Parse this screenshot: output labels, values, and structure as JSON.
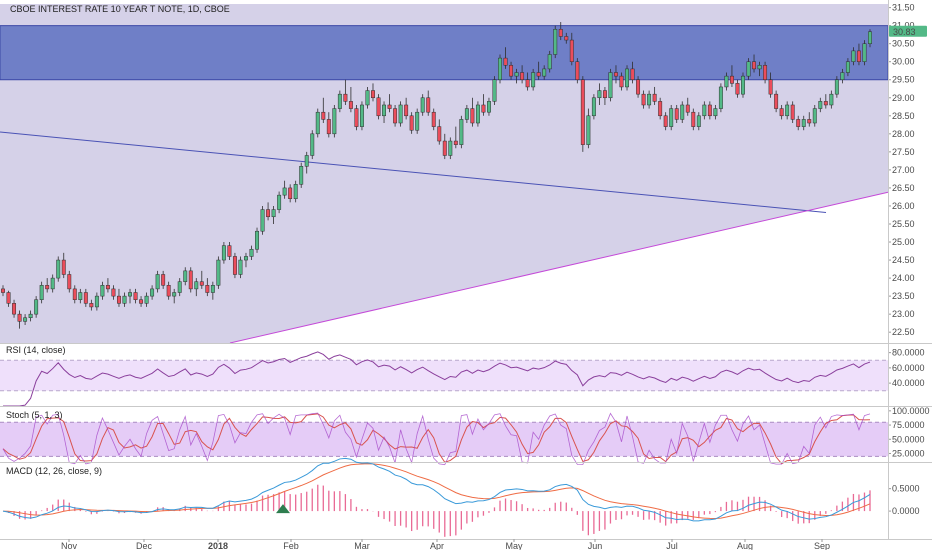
{
  "chart_data": {
    "type": "candlestick",
    "title": "CBOE INTEREST RATE 10 YEAR T NOTE, 1D, CBOE",
    "last_price": "30.83",
    "last_price_value": 30.83,
    "x_labels": [
      "Nov",
      "Dec",
      "2018",
      "Feb",
      "Mar",
      "Apr",
      "May",
      "Jun",
      "Jul",
      "Aug",
      "Sep"
    ],
    "price_axis": {
      "ylim": [
        22.2,
        31.6
      ],
      "ticks": [
        "31.50",
        "31.00",
        "30.50",
        "30.00",
        "29.50",
        "29.00",
        "28.50",
        "28.00",
        "27.50",
        "27.00",
        "26.50",
        "26.00",
        "25.50",
        "25.00",
        "24.50",
        "24.00",
        "23.50",
        "23.00",
        "22.50"
      ]
    },
    "colors": {
      "up": "#53b987",
      "down": "#eb4d5c",
      "zone_fill": "#6f7fc7",
      "wedge_fill": "#d5d1e8",
      "trendline": "#4a52b5",
      "support_line": "#c44ad8",
      "rsi_line": "#8a3f9c",
      "rsi_band": "#efe0fb",
      "stoch_k": "#a64ac9",
      "stoch_d": "#d9534f",
      "stoch_band": "#e5ccf7",
      "macd_line": "#3a9ad9",
      "signal_line": "#ef6c45",
      "macd_hist": "#e96a95"
    },
    "resistance_zone": {
      "top": 31.0,
      "bottom": 29.5
    },
    "trendline": {
      "start_value": 28.05,
      "end_value": 25.82
    },
    "support_line": {
      "start_value": 22.2,
      "end_value": 26.38
    },
    "rsi": {
      "label": "RSI (14, close)",
      "ylim": [
        10,
        90
      ],
      "ticks": [
        "80.0000",
        "60.0000",
        "40.0000"
      ],
      "upper": 70,
      "lower": 30
    },
    "stoch": {
      "label": "Stoch (5, 1, 3)",
      "ylim": [
        10,
        105
      ],
      "ticks": [
        "100.0000",
        "75.0000",
        "50.0000",
        "25.0000"
      ],
      "upper": 80,
      "lower": 20
    },
    "macd": {
      "label": "MACD (12, 26, close, 9)",
      "ylim": [
        -0.6,
        1.05
      ],
      "ticks": [
        "0.5000",
        "0.0000"
      ]
    },
    "candles": [
      [
        23.7,
        23.8,
        23.5,
        23.6
      ],
      [
        23.6,
        23.65,
        23.2,
        23.3
      ],
      [
        23.3,
        23.4,
        22.9,
        23.0
      ],
      [
        23.0,
        23.1,
        22.6,
        22.8
      ],
      [
        22.8,
        23.0,
        22.7,
        22.9
      ],
      [
        22.9,
        23.1,
        22.8,
        23.0
      ],
      [
        23.0,
        23.5,
        22.9,
        23.4
      ],
      [
        23.4,
        23.9,
        23.3,
        23.8
      ],
      [
        23.8,
        24.0,
        23.6,
        23.7
      ],
      [
        23.7,
        24.1,
        23.6,
        24.0
      ],
      [
        24.0,
        24.6,
        23.9,
        24.5
      ],
      [
        24.5,
        24.7,
        24.0,
        24.1
      ],
      [
        24.1,
        24.2,
        23.6,
        23.7
      ],
      [
        23.7,
        23.8,
        23.3,
        23.4
      ],
      [
        23.4,
        23.7,
        23.3,
        23.6
      ],
      [
        23.6,
        23.7,
        23.2,
        23.3
      ],
      [
        23.3,
        23.4,
        23.1,
        23.2
      ],
      [
        23.2,
        23.6,
        23.1,
        23.5
      ],
      [
        23.5,
        23.9,
        23.4,
        23.8
      ],
      [
        23.8,
        24.0,
        23.6,
        23.7
      ],
      [
        23.7,
        23.8,
        23.4,
        23.5
      ],
      [
        23.5,
        23.7,
        23.2,
        23.3
      ],
      [
        23.3,
        23.6,
        23.2,
        23.5
      ],
      [
        23.5,
        23.7,
        23.3,
        23.6
      ],
      [
        23.6,
        23.7,
        23.3,
        23.4
      ],
      [
        23.4,
        23.5,
        23.2,
        23.3
      ],
      [
        23.3,
        23.6,
        23.2,
        23.5
      ],
      [
        23.5,
        23.8,
        23.4,
        23.7
      ],
      [
        23.7,
        24.2,
        23.6,
        24.1
      ],
      [
        24.1,
        24.2,
        23.7,
        23.8
      ],
      [
        23.8,
        23.9,
        23.4,
        23.5
      ],
      [
        23.5,
        23.7,
        23.3,
        23.6
      ],
      [
        23.6,
        24.0,
        23.5,
        23.9
      ],
      [
        23.9,
        24.3,
        23.8,
        24.2
      ],
      [
        24.2,
        24.3,
        23.6,
        23.7
      ],
      [
        23.7,
        24.0,
        23.5,
        23.9
      ],
      [
        23.9,
        24.2,
        23.7,
        23.8
      ],
      [
        23.8,
        24.0,
        23.5,
        23.6
      ],
      [
        23.6,
        23.9,
        23.4,
        23.8
      ],
      [
        23.8,
        24.6,
        23.7,
        24.5
      ],
      [
        24.5,
        25.0,
        24.4,
        24.9
      ],
      [
        24.9,
        25.0,
        24.5,
        24.6
      ],
      [
        24.6,
        24.7,
        24.0,
        24.1
      ],
      [
        24.1,
        24.6,
        24.0,
        24.5
      ],
      [
        24.5,
        24.7,
        24.3,
        24.6
      ],
      [
        24.6,
        24.9,
        24.5,
        24.8
      ],
      [
        24.8,
        25.4,
        24.7,
        25.3
      ],
      [
        25.3,
        26.0,
        25.2,
        25.9
      ],
      [
        25.9,
        26.1,
        25.6,
        25.7
      ],
      [
        25.7,
        26.0,
        25.5,
        25.9
      ],
      [
        25.9,
        26.4,
        25.8,
        26.3
      ],
      [
        26.3,
        26.7,
        26.2,
        26.5
      ],
      [
        26.5,
        26.6,
        26.1,
        26.2
      ],
      [
        26.2,
        26.7,
        26.1,
        26.6
      ],
      [
        26.6,
        27.2,
        26.5,
        27.1
      ],
      [
        27.1,
        27.5,
        26.9,
        27.4
      ],
      [
        27.4,
        28.1,
        27.3,
        28.0
      ],
      [
        28.0,
        28.7,
        27.9,
        28.6
      ],
      [
        28.6,
        29.0,
        28.3,
        28.4
      ],
      [
        28.4,
        28.6,
        27.9,
        28.0
      ],
      [
        28.0,
        28.8,
        27.9,
        28.7
      ],
      [
        28.7,
        29.2,
        28.6,
        29.1
      ],
      [
        29.1,
        29.5,
        28.8,
        28.9
      ],
      [
        28.9,
        29.3,
        28.6,
        28.7
      ],
      [
        28.7,
        28.8,
        28.1,
        28.2
      ],
      [
        28.2,
        28.9,
        28.1,
        28.8
      ],
      [
        28.8,
        29.3,
        28.7,
        29.2
      ],
      [
        29.2,
        29.4,
        28.9,
        29.0
      ],
      [
        29.0,
        29.1,
        28.4,
        28.5
      ],
      [
        28.5,
        28.9,
        28.3,
        28.8
      ],
      [
        28.8,
        29.1,
        28.6,
        28.7
      ],
      [
        28.7,
        28.8,
        28.2,
        28.3
      ],
      [
        28.3,
        28.9,
        28.2,
        28.8
      ],
      [
        28.8,
        29.0,
        28.4,
        28.5
      ],
      [
        28.5,
        28.6,
        28.0,
        28.1
      ],
      [
        28.1,
        28.7,
        28.0,
        28.6
      ],
      [
        28.6,
        29.1,
        28.5,
        29.0
      ],
      [
        29.0,
        29.2,
        28.5,
        28.6
      ],
      [
        28.6,
        28.7,
        28.1,
        28.2
      ],
      [
        28.2,
        28.4,
        27.7,
        27.8
      ],
      [
        27.8,
        28.0,
        27.3,
        27.4
      ],
      [
        27.4,
        27.9,
        27.3,
        27.8
      ],
      [
        27.8,
        28.2,
        27.6,
        27.7
      ],
      [
        27.7,
        28.5,
        27.6,
        28.4
      ],
      [
        28.4,
        28.8,
        28.3,
        28.7
      ],
      [
        28.7,
        29.0,
        28.2,
        28.3
      ],
      [
        28.3,
        28.9,
        28.2,
        28.8
      ],
      [
        28.8,
        29.1,
        28.5,
        28.6
      ],
      [
        28.6,
        29.0,
        28.5,
        28.9
      ],
      [
        28.9,
        29.6,
        28.8,
        29.5
      ],
      [
        29.5,
        30.2,
        29.4,
        30.1
      ],
      [
        30.1,
        30.4,
        29.8,
        29.9
      ],
      [
        29.9,
        30.0,
        29.5,
        29.6
      ],
      [
        29.6,
        29.8,
        29.4,
        29.7
      ],
      [
        29.7,
        29.9,
        29.4,
        29.5
      ],
      [
        29.5,
        29.7,
        29.2,
        29.3
      ],
      [
        29.3,
        29.8,
        29.2,
        29.7
      ],
      [
        29.7,
        30.0,
        29.5,
        29.6
      ],
      [
        29.6,
        29.9,
        29.5,
        29.8
      ],
      [
        29.8,
        30.3,
        29.7,
        30.2
      ],
      [
        30.2,
        31.0,
        30.1,
        30.9
      ],
      [
        30.9,
        31.1,
        30.6,
        30.7
      ],
      [
        30.7,
        30.8,
        30.5,
        30.6
      ],
      [
        30.6,
        30.8,
        29.9,
        30.0
      ],
      [
        30.0,
        30.1,
        29.4,
        29.5
      ],
      [
        29.5,
        29.6,
        27.5,
        27.7
      ],
      [
        27.7,
        28.7,
        27.6,
        28.5
      ],
      [
        28.5,
        29.1,
        28.4,
        29.0
      ],
      [
        29.0,
        29.4,
        28.8,
        29.2
      ],
      [
        29.2,
        29.3,
        28.8,
        29.0
      ],
      [
        29.0,
        29.8,
        28.9,
        29.7
      ],
      [
        29.7,
        29.9,
        29.4,
        29.6
      ],
      [
        29.6,
        29.7,
        29.2,
        29.3
      ],
      [
        29.3,
        29.9,
        29.2,
        29.8
      ],
      [
        29.8,
        30.0,
        29.4,
        29.5
      ],
      [
        29.5,
        29.6,
        29.0,
        29.1
      ],
      [
        29.1,
        29.2,
        28.7,
        28.8
      ],
      [
        28.8,
        29.2,
        28.7,
        29.1
      ],
      [
        29.1,
        29.3,
        28.8,
        28.9
      ],
      [
        28.9,
        29.0,
        28.4,
        28.5
      ],
      [
        28.5,
        28.6,
        28.1,
        28.2
      ],
      [
        28.2,
        28.8,
        28.1,
        28.7
      ],
      [
        28.7,
        28.8,
        28.3,
        28.4
      ],
      [
        28.4,
        28.9,
        28.3,
        28.8
      ],
      [
        28.8,
        29.0,
        28.5,
        28.6
      ],
      [
        28.6,
        28.7,
        28.1,
        28.2
      ],
      [
        28.2,
        28.6,
        28.1,
        28.5
      ],
      [
        28.5,
        28.9,
        28.4,
        28.8
      ],
      [
        28.8,
        28.9,
        28.4,
        28.5
      ],
      [
        28.5,
        28.8,
        28.4,
        28.7
      ],
      [
        28.7,
        29.4,
        28.6,
        29.3
      ],
      [
        29.3,
        29.7,
        29.2,
        29.6
      ],
      [
        29.6,
        29.9,
        29.3,
        29.4
      ],
      [
        29.4,
        29.5,
        29.0,
        29.1
      ],
      [
        29.1,
        29.7,
        29.0,
        29.6
      ],
      [
        29.6,
        30.1,
        29.5,
        30.0
      ],
      [
        30.0,
        30.2,
        29.7,
        29.8
      ],
      [
        29.8,
        30.0,
        29.6,
        29.9
      ],
      [
        29.9,
        30.0,
        29.4,
        29.5
      ],
      [
        29.5,
        29.7,
        29.0,
        29.1
      ],
      [
        29.1,
        29.2,
        28.6,
        28.7
      ],
      [
        28.7,
        28.8,
        28.4,
        28.5
      ],
      [
        28.5,
        28.9,
        28.4,
        28.8
      ],
      [
        28.8,
        28.9,
        28.3,
        28.4
      ],
      [
        28.4,
        28.5,
        28.1,
        28.2
      ],
      [
        28.2,
        28.5,
        28.1,
        28.4
      ],
      [
        28.4,
        28.6,
        28.2,
        28.3
      ],
      [
        28.3,
        28.8,
        28.2,
        28.7
      ],
      [
        28.7,
        29.0,
        28.6,
        28.9
      ],
      [
        28.9,
        29.1,
        28.7,
        28.8
      ],
      [
        28.8,
        29.2,
        28.7,
        29.1
      ],
      [
        29.1,
        29.6,
        29.0,
        29.5
      ],
      [
        29.5,
        29.8,
        29.4,
        29.7
      ],
      [
        29.7,
        30.1,
        29.6,
        30.0
      ],
      [
        30.0,
        30.4,
        29.9,
        30.3
      ],
      [
        30.3,
        30.5,
        29.9,
        30.0
      ],
      [
        30.0,
        30.6,
        29.9,
        30.5
      ],
      [
        30.5,
        30.9,
        30.4,
        30.83
      ]
    ]
  }
}
